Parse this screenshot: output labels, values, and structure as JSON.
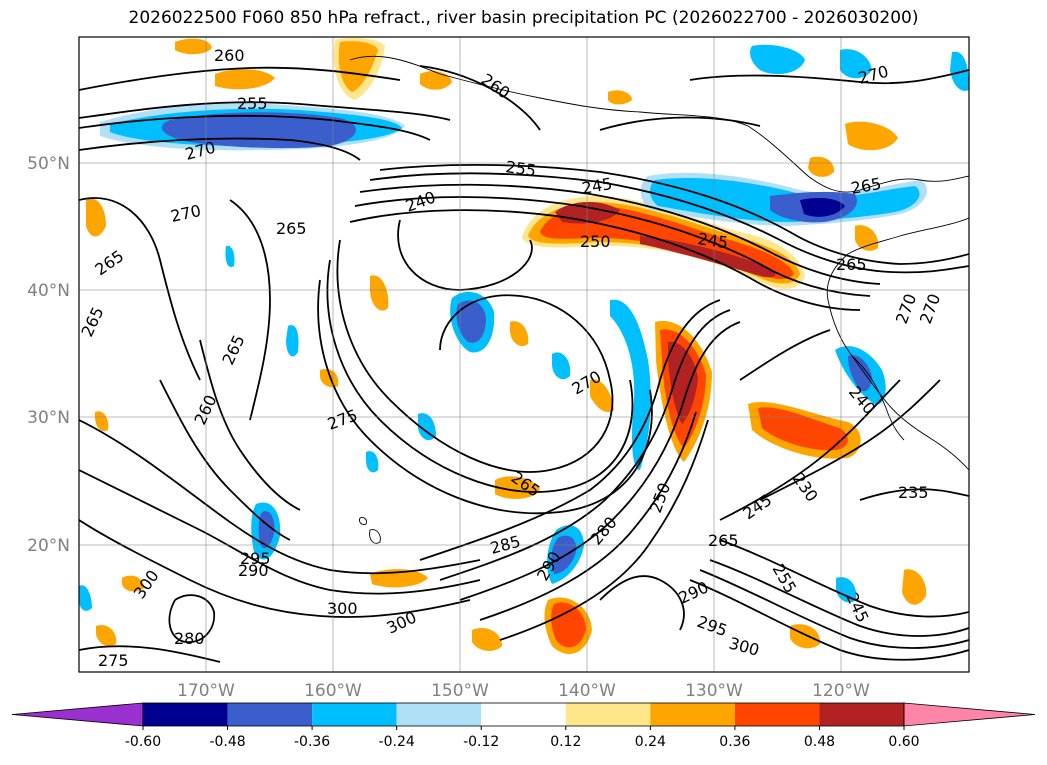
{
  "title": "2026022500 F060 850 hPa refract., river basin precipitation PC (2026022700 - 2026030200)",
  "map": {
    "lat_labels": [
      "50°N",
      "40°N",
      "30°N",
      "20°N"
    ],
    "lon_labels": [
      "170°W",
      "160°W",
      "150°W",
      "140°W",
      "130°W",
      "120°W"
    ]
  },
  "chart_data": {
    "type": "heatmap",
    "field_filled": "precipitation PC",
    "field_contour": "850 hPa refractivity",
    "contour_labels": [
      {
        "text": "260"
      },
      {
        "text": "260"
      },
      {
        "text": "270"
      },
      {
        "text": "255"
      },
      {
        "text": "270"
      },
      {
        "text": "255"
      },
      {
        "text": "245"
      },
      {
        "text": "265"
      },
      {
        "text": "270"
      },
      {
        "text": "240"
      },
      {
        "text": "250"
      },
      {
        "text": "245"
      },
      {
        "text": "265"
      },
      {
        "text": "265"
      },
      {
        "text": "265"
      },
      {
        "text": "265"
      },
      {
        "text": "270"
      },
      {
        "text": "270"
      },
      {
        "text": "260"
      },
      {
        "text": "265"
      },
      {
        "text": "240"
      },
      {
        "text": "275"
      },
      {
        "text": "270"
      },
      {
        "text": "265"
      },
      {
        "text": "285"
      },
      {
        "text": "280"
      },
      {
        "text": "290"
      },
      {
        "text": "250"
      },
      {
        "text": "230"
      },
      {
        "text": "245"
      },
      {
        "text": "235"
      },
      {
        "text": "265"
      },
      {
        "text": "255"
      },
      {
        "text": "295"
      },
      {
        "text": "290"
      },
      {
        "text": "300"
      },
      {
        "text": "300"
      },
      {
        "text": "280"
      },
      {
        "text": "300"
      },
      {
        "text": "290"
      },
      {
        "text": "295"
      },
      {
        "text": "300"
      },
      {
        "text": "245"
      },
      {
        "text": "275"
      }
    ],
    "colorbar": {
      "ticks": [
        "-0.60",
        "-0.48",
        "-0.36",
        "-0.24",
        "-0.12",
        "0.12",
        "0.24",
        "0.36",
        "0.48",
        "0.60"
      ],
      "colors": [
        "#9b30d0",
        "#000090",
        "#3a5fcd",
        "#00bfff",
        "#b0e0f8",
        "#ffffff",
        "#ffe68a",
        "#ffa500",
        "#ff4500",
        "#b22222",
        "#ff85a8"
      ]
    }
  }
}
